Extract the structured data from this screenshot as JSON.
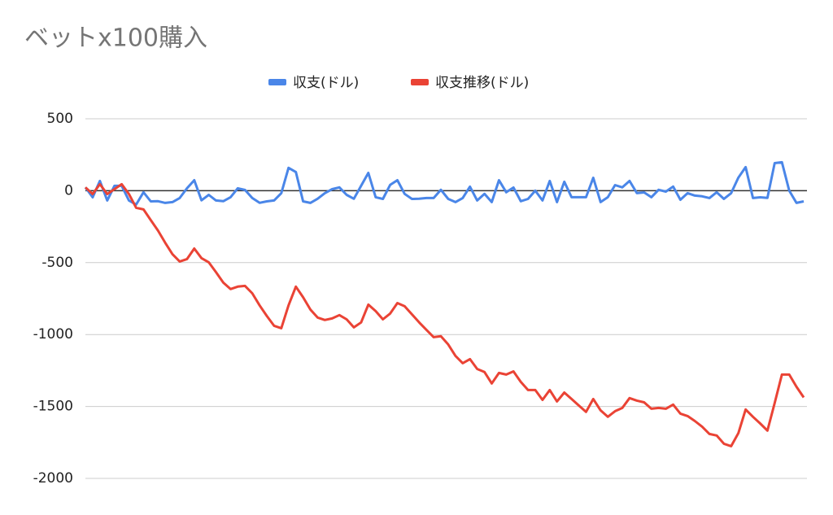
{
  "chart_data": {
    "type": "line",
    "title": "ベットx100購入",
    "series": [
      {
        "name": "収支(ドル)",
        "color": "#4a86e8",
        "values": [
          23,
          -46,
          68,
          -68,
          34,
          34,
          -68,
          -96,
          -11,
          -74,
          -73,
          -85,
          -79,
          -51,
          17,
          73,
          -67,
          -29,
          -68,
          -73,
          -45,
          17,
          5,
          -51,
          -84,
          -74,
          -68,
          -17,
          159,
          130,
          -74,
          -85,
          -56,
          -17,
          11,
          23,
          -29,
          -56,
          34,
          124,
          -45,
          -57,
          40,
          73,
          -22,
          -57,
          -56,
          -51,
          -51,
          6,
          -57,
          -79,
          -51,
          28,
          -68,
          -22,
          -79,
          73,
          -11,
          22,
          -73,
          -57,
          0,
          -68,
          68,
          -79,
          62,
          -45,
          -45,
          -45,
          90,
          -79,
          -45,
          39,
          23,
          68,
          -17,
          -12,
          -45,
          6,
          -6,
          29,
          -63,
          -17,
          -34,
          -39,
          -51,
          -11,
          -57,
          -17,
          91,
          164,
          -51,
          -46,
          -50,
          192,
          198,
          0,
          -85,
          -74
        ]
      },
      {
        "name": "収支推移(ドル)",
        "color": "#ea4335",
        "values": [
          23,
          -23,
          45,
          -23,
          11,
          45,
          -23,
          -119,
          -130,
          -204,
          -277,
          -362,
          -441,
          -492,
          -475,
          -402,
          -469,
          -498,
          -566,
          -639,
          -684,
          -667,
          -662,
          -713,
          -797,
          -871,
          -939,
          -956,
          -797,
          -667,
          -741,
          -826,
          -882,
          -899,
          -888,
          -865,
          -894,
          -950,
          -916,
          -792,
          -837,
          -894,
          -854,
          -781,
          -803,
          -860,
          -916,
          -967,
          -1018,
          -1012,
          -1069,
          -1148,
          -1199,
          -1171,
          -1239,
          -1261,
          -1340,
          -1267,
          -1278,
          -1256,
          -1329,
          -1386,
          -1386,
          -1454,
          -1386,
          -1465,
          -1403,
          -1448,
          -1493,
          -1538,
          -1448,
          -1527,
          -1572,
          -1533,
          -1510,
          -1442,
          -1459,
          -1471,
          -1516,
          -1510,
          -1516,
          -1487,
          -1550,
          -1567,
          -1601,
          -1640,
          -1691,
          -1702,
          -1759,
          -1776,
          -1685,
          -1521,
          -1572,
          -1618,
          -1668,
          -1476,
          -1278,
          -1278,
          -1363,
          -1437
        ]
      }
    ],
    "ylim": [
      -2000,
      500
    ],
    "yticks": [
      -2000,
      -1500,
      -1000,
      -500,
      0,
      500
    ],
    "grid": true,
    "legend": "top"
  }
}
